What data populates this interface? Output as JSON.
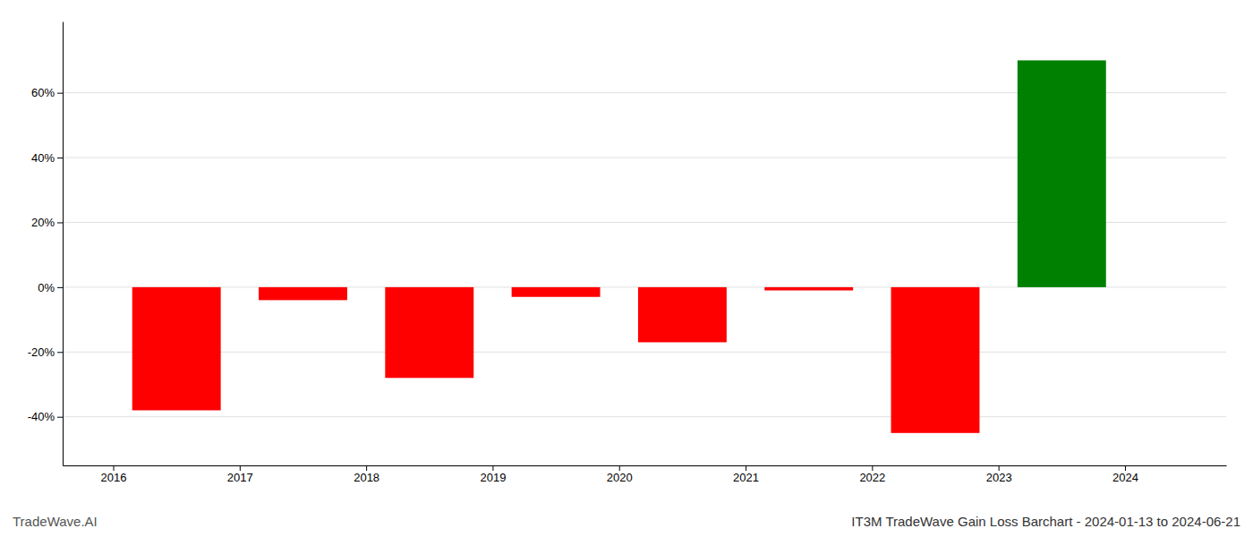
{
  "chart_data": {
    "type": "bar",
    "title": "IT3M TradeWave Gain Loss Barchart - 2024-01-13 to 2024-06-21",
    "annotations": [
      "TradeWave.AI"
    ],
    "x": [
      2016.5,
      2017.5,
      2018.5,
      2019.5,
      2020.5,
      2021.5,
      2022.5,
      2023.5
    ],
    "values": [
      -0.38,
      -0.04,
      -0.28,
      -0.03,
      -0.17,
      -0.01,
      -0.45,
      0.7
    ],
    "colors": [
      "#ff0000",
      "#ff0000",
      "#ff0000",
      "#ff0000",
      "#ff0000",
      "#ff0000",
      "#ff0000",
      "#008000"
    ],
    "xlim": [
      2015.6,
      2024.8
    ],
    "xticks": [
      2016,
      2017,
      2018,
      2019,
      2020,
      2021,
      2022,
      2023,
      2024
    ],
    "ylim": [
      -0.55,
      0.82
    ],
    "yticks": [
      {
        "value": -0.4,
        "label": "-40%"
      },
      {
        "value": -0.2,
        "label": "-20%"
      },
      {
        "value": 0.0,
        "label": "0%"
      },
      {
        "value": 0.2,
        "label": "20%"
      },
      {
        "value": 0.4,
        "label": "40%"
      },
      {
        "value": 0.6,
        "label": "60%"
      }
    ],
    "grid": true
  }
}
